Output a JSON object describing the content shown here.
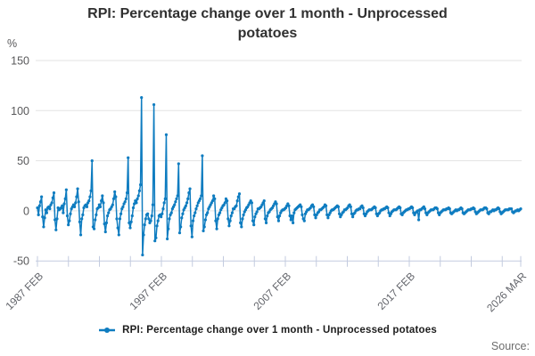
{
  "title": "RPI: Percentage change over 1 month - Unprocessed potatoes",
  "title_lines": [
    "RPI: Percentage change over 1 month - Unprocessed",
    "potatoes"
  ],
  "y_axis_unit": "%",
  "source_label": "Source:",
  "legend": {
    "label": "RPI: Percentage change over 1 month - Unprocessed potatoes"
  },
  "colors": {
    "line": "#0e7cc0",
    "grid": "#e3e3e3",
    "axis": "#c3cbdf",
    "y_tick_text": "#58585a",
    "x_tick_text": "#63656b",
    "title_text": "#303030",
    "source_text": "#6d6d6d"
  },
  "chart_data": {
    "type": "line",
    "title": "RPI: Percentage change over 1 month - Unprocessed potatoes",
    "xlabel": "",
    "ylabel": "%",
    "ylim": [
      -50,
      150
    ],
    "yticks": [
      -50,
      0,
      50,
      100,
      150
    ],
    "grid": "horizontal",
    "legend_position": "bottom",
    "x_start": "1987 FEB",
    "x_end": "2026 MAR",
    "frequency": "monthly",
    "xtick_labels": [
      "1987 FEB",
      "1997 FEB",
      "2007 FEB",
      "2017 FEB",
      "2026 MAR"
    ],
    "series": [
      {
        "name": "RPI: Percentage change over 1 month - Unprocessed potatoes",
        "color": "#0e7cc0",
        "values": [
          3,
          -4,
          5,
          9,
          14,
          -6,
          -16,
          -7,
          1,
          -2,
          3,
          4,
          2,
          6,
          8,
          13,
          18,
          -9,
          -19,
          -8,
          3,
          1,
          2,
          3,
          5,
          -2,
          7,
          12,
          21,
          -5,
          -14,
          -10,
          -3,
          2,
          4,
          6,
          4,
          8,
          14,
          22,
          9,
          -11,
          -24,
          -8,
          -4,
          3,
          5,
          6,
          4,
          8,
          10,
          14,
          20,
          50,
          -16,
          -18,
          -9,
          -4,
          2,
          3,
          6,
          4,
          10,
          15,
          8,
          -13,
          -21,
          -12,
          -5,
          -2,
          1,
          2,
          4,
          6,
          12,
          19,
          14,
          -8,
          -17,
          -24,
          -8,
          -3,
          2,
          4,
          7,
          9,
          12,
          18,
          53,
          -12,
          -17,
          -11,
          -5,
          3,
          7,
          10,
          8,
          12,
          15,
          20,
          26,
          113,
          -44,
          -24,
          -14,
          -8,
          -4,
          -3,
          -8,
          -12,
          -10,
          -5,
          6,
          106,
          -30,
          -27,
          -15,
          -10,
          -5,
          -4,
          -6,
          -3,
          2,
          8,
          12,
          76,
          -28,
          -18,
          -8,
          -4,
          -2,
          2,
          4,
          6,
          9,
          12,
          15,
          47,
          -22,
          -16,
          -7,
          -3,
          1,
          3,
          5,
          8,
          12,
          18,
          22,
          -15,
          -26,
          -10,
          -5,
          -2,
          2,
          5,
          8,
          10,
          12,
          15,
          55,
          -20,
          -16,
          -9,
          -4,
          -2,
          2,
          4,
          6,
          8,
          10,
          15,
          12,
          -10,
          -18,
          -8,
          -4,
          -2,
          1,
          3,
          5,
          6,
          8,
          12,
          10,
          -8,
          -15,
          -10,
          -5,
          -2,
          2,
          2,
          4,
          5,
          10,
          14,
          17,
          -12,
          -16,
          -8,
          -4,
          -1,
          1,
          3,
          4,
          6,
          8,
          10,
          8,
          -10,
          -14,
          -6,
          -3,
          -1,
          2,
          2,
          3,
          4,
          6,
          8,
          10,
          -8,
          -12,
          -5,
          -2,
          -1,
          1,
          2,
          3,
          5,
          7,
          9,
          7,
          -6,
          -10,
          -5,
          -2,
          0,
          1,
          1,
          2,
          3,
          5,
          7,
          5,
          -5,
          -9,
          -5,
          -12,
          -2,
          1,
          2,
          3,
          4,
          5,
          6,
          4,
          -4,
          -8,
          -10,
          -3,
          -1,
          1,
          1,
          2,
          3,
          5,
          6,
          4,
          -4,
          -7,
          -4,
          -2,
          -1,
          1,
          1,
          2,
          3,
          4,
          6,
          5,
          -4,
          -7,
          -4,
          -2,
          0,
          1,
          1,
          2,
          3,
          4,
          5,
          4,
          -3,
          -6,
          -4,
          -2,
          -1,
          1,
          1,
          2,
          3,
          5,
          6,
          4,
          -3,
          -6,
          -3,
          -2,
          0,
          1,
          1,
          2,
          2,
          4,
          5,
          3,
          -3,
          -5,
          -3,
          -1,
          0,
          1,
          1,
          1,
          2,
          3,
          4,
          3,
          -3,
          -5,
          -3,
          -2,
          0,
          1,
          1,
          2,
          2,
          3,
          4,
          3,
          -2,
          -5,
          -3,
          -1,
          0,
          1,
          1,
          1,
          2,
          3,
          4,
          3,
          -3,
          -4,
          -2,
          -1,
          0,
          1,
          1,
          2,
          2,
          3,
          4,
          3,
          -2,
          -4,
          -2,
          -1,
          0,
          -9,
          1,
          1,
          2,
          3,
          4,
          2,
          -2,
          -4,
          -2,
          -1,
          0,
          1,
          1,
          1,
          2,
          3,
          3,
          2,
          -2,
          -4,
          -2,
          -1,
          0,
          1,
          1,
          1,
          2,
          2,
          3,
          2,
          -2,
          -3,
          -2,
          -1,
          0,
          1,
          0,
          1,
          1,
          2,
          3,
          2,
          -2,
          -3,
          -2,
          -1,
          0,
          1,
          1,
          1,
          2,
          2,
          3,
          2,
          -1,
          -3,
          -2,
          -1,
          0,
          1,
          1,
          1,
          2,
          3,
          3,
          2,
          -2,
          -3,
          -1,
          -1,
          0,
          1,
          0,
          1,
          1,
          2,
          3,
          2,
          -1,
          -3,
          -2,
          -1,
          0,
          1,
          1,
          1,
          1,
          2,
          2,
          2,
          -1,
          -2,
          -1,
          0,
          0,
          1,
          0,
          1,
          2
        ]
      }
    ]
  }
}
